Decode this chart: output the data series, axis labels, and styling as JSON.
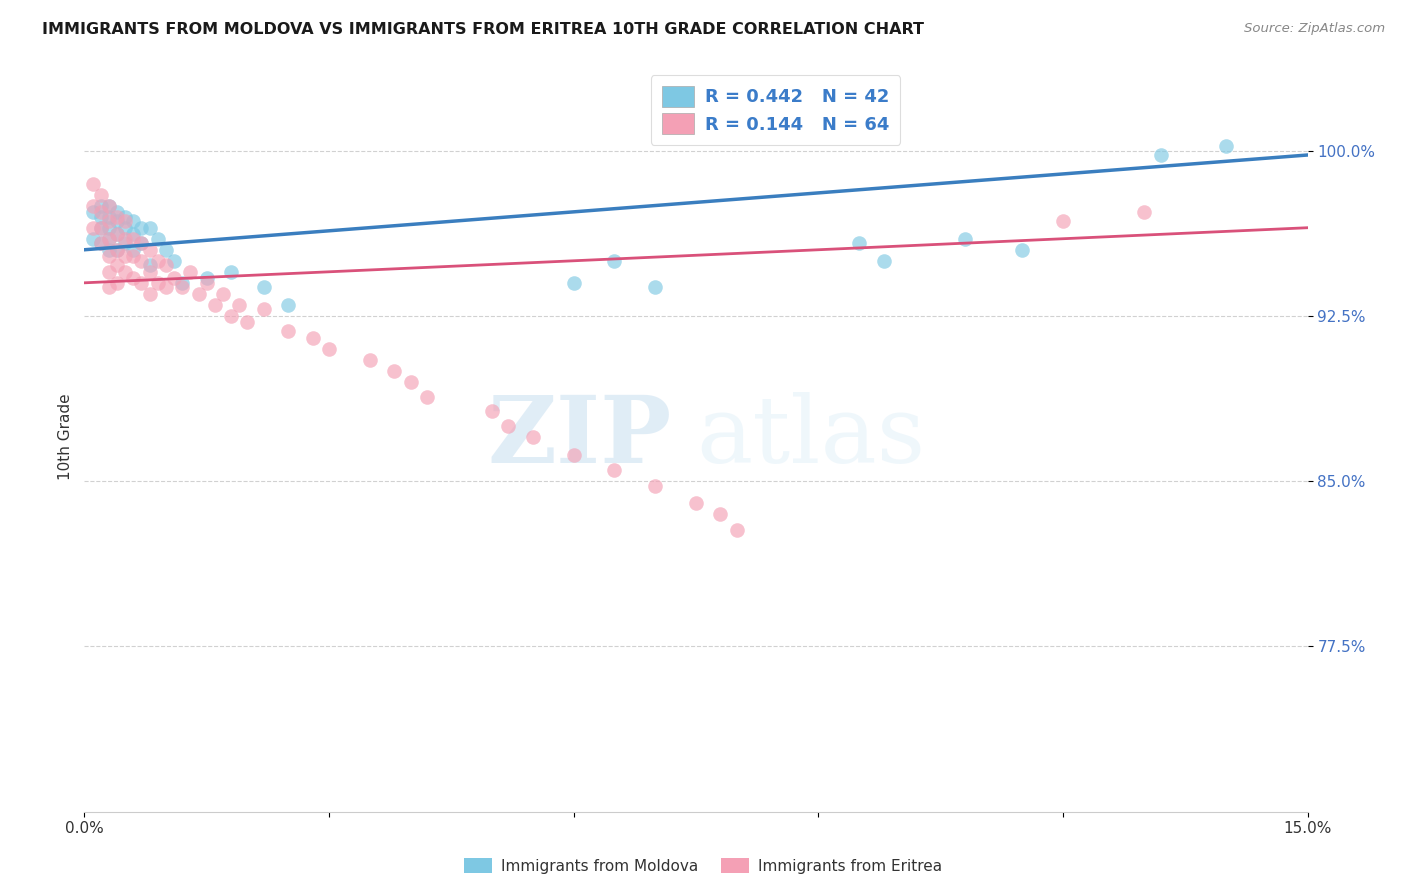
{
  "title": "IMMIGRANTS FROM MOLDOVA VS IMMIGRANTS FROM ERITREA 10TH GRADE CORRELATION CHART",
  "source": "Source: ZipAtlas.com",
  "ylabel": "10th Grade",
  "ytick_values": [
    0.775,
    0.85,
    0.925,
    1.0
  ],
  "xlim": [
    0.0,
    0.15
  ],
  "ylim": [
    0.7,
    1.04
  ],
  "legend_moldova": "R = 0.442   N = 42",
  "legend_eritrea": "R = 0.144   N = 64",
  "color_moldova": "#7ec8e3",
  "color_eritrea": "#f4a0b5",
  "trendline_color_moldova": "#3a7ebf",
  "trendline_color_eritrea": "#d9517a",
  "watermark_zip": "ZIP",
  "watermark_atlas": "atlas",
  "moldova_x": [
    0.001,
    0.001,
    0.002,
    0.002,
    0.002,
    0.002,
    0.003,
    0.003,
    0.003,
    0.003,
    0.003,
    0.004,
    0.004,
    0.004,
    0.004,
    0.005,
    0.005,
    0.005,
    0.006,
    0.006,
    0.006,
    0.007,
    0.007,
    0.008,
    0.008,
    0.009,
    0.01,
    0.011,
    0.012,
    0.015,
    0.018,
    0.022,
    0.025,
    0.06,
    0.065,
    0.07,
    0.095,
    0.098,
    0.108,
    0.115,
    0.132,
    0.14
  ],
  "moldova_y": [
    0.972,
    0.96,
    0.975,
    0.97,
    0.965,
    0.958,
    0.975,
    0.97,
    0.965,
    0.96,
    0.955,
    0.972,
    0.968,
    0.962,
    0.955,
    0.97,
    0.965,
    0.958,
    0.968,
    0.962,
    0.955,
    0.965,
    0.958,
    0.965,
    0.948,
    0.96,
    0.955,
    0.95,
    0.94,
    0.942,
    0.945,
    0.938,
    0.93,
    0.94,
    0.95,
    0.938,
    0.958,
    0.95,
    0.96,
    0.955,
    0.998,
    1.002
  ],
  "eritrea_x": [
    0.001,
    0.001,
    0.001,
    0.002,
    0.002,
    0.002,
    0.002,
    0.003,
    0.003,
    0.003,
    0.003,
    0.003,
    0.003,
    0.004,
    0.004,
    0.004,
    0.004,
    0.004,
    0.005,
    0.005,
    0.005,
    0.005,
    0.006,
    0.006,
    0.006,
    0.007,
    0.007,
    0.007,
    0.008,
    0.008,
    0.008,
    0.009,
    0.009,
    0.01,
    0.01,
    0.011,
    0.012,
    0.013,
    0.014,
    0.015,
    0.016,
    0.017,
    0.018,
    0.019,
    0.02,
    0.022,
    0.025,
    0.028,
    0.03,
    0.035,
    0.038,
    0.04,
    0.042,
    0.05,
    0.052,
    0.055,
    0.06,
    0.065,
    0.07,
    0.075,
    0.078,
    0.08,
    0.12,
    0.13
  ],
  "eritrea_y": [
    0.985,
    0.975,
    0.965,
    0.98,
    0.972,
    0.965,
    0.958,
    0.975,
    0.968,
    0.96,
    0.952,
    0.945,
    0.938,
    0.97,
    0.962,
    0.955,
    0.948,
    0.94,
    0.968,
    0.96,
    0.952,
    0.945,
    0.96,
    0.952,
    0.942,
    0.958,
    0.95,
    0.94,
    0.955,
    0.945,
    0.935,
    0.95,
    0.94,
    0.948,
    0.938,
    0.942,
    0.938,
    0.945,
    0.935,
    0.94,
    0.93,
    0.935,
    0.925,
    0.93,
    0.922,
    0.928,
    0.918,
    0.915,
    0.91,
    0.905,
    0.9,
    0.895,
    0.888,
    0.882,
    0.875,
    0.87,
    0.862,
    0.855,
    0.848,
    0.84,
    0.835,
    0.828,
    0.968,
    0.972
  ]
}
